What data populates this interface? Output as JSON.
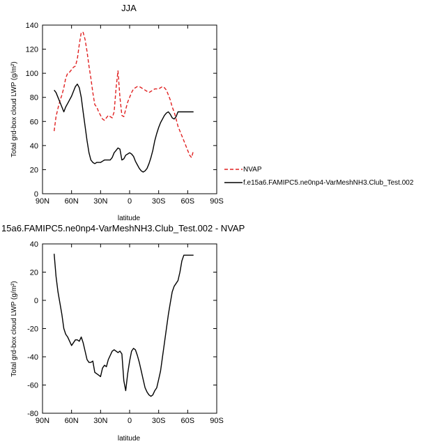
{
  "chart_data": [
    {
      "type": "line",
      "title": "JJA",
      "xlabel": "latitude",
      "ylabel": "Total grd-box cloud LWP (g/m²)",
      "xlim": [
        90,
        -90
      ],
      "ylim": [
        0,
        140
      ],
      "x_ticks": [
        90,
        60,
        30,
        0,
        -30,
        -60,
        -90
      ],
      "x_tick_labels": [
        "90N",
        "60N",
        "30N",
        "0",
        "30S",
        "60S",
        "90S"
      ],
      "y_ticks": [
        0,
        20,
        40,
        60,
        80,
        100,
        120,
        140
      ],
      "y_tick_labels": [
        "0",
        "20",
        "40",
        "60",
        "80",
        "100",
        "120",
        "140"
      ],
      "legend_position": "right",
      "series": [
        {
          "name": "NVAP",
          "color": "#e02020",
          "style": "dashed",
          "x": [
            78,
            76,
            74,
            72,
            70,
            68,
            66,
            64,
            62,
            60,
            58,
            56,
            54,
            52,
            50,
            48,
            46,
            44,
            42,
            40,
            38,
            36,
            34,
            32,
            30,
            28,
            26,
            24,
            22,
            20,
            18,
            16,
            14,
            12,
            10,
            8,
            6,
            4,
            2,
            0,
            -2,
            -4,
            -6,
            -8,
            -10,
            -12,
            -14,
            -16,
            -18,
            -20,
            -22,
            -24,
            -26,
            -28,
            -30,
            -32,
            -34,
            -36,
            -38,
            -40,
            -42,
            -44,
            -46,
            -48,
            -50,
            -52,
            -54,
            -56,
            -58,
            -60,
            -62,
            -64,
            -66
          ],
          "y": [
            52,
            64,
            71,
            77,
            82,
            88,
            96,
            100,
            101,
            103,
            105,
            106,
            112,
            124,
            134,
            134,
            128,
            118,
            106,
            96,
            84,
            74,
            72,
            68,
            65,
            62,
            61,
            63,
            65,
            64,
            63,
            68,
            88,
            102,
            80,
            65,
            64,
            70,
            76,
            80,
            84,
            87,
            88,
            89,
            89,
            88,
            87,
            86,
            85,
            84,
            85,
            86,
            87,
            87,
            87,
            88,
            89,
            88,
            86,
            82,
            78,
            72,
            68,
            62,
            56,
            52,
            48,
            44,
            40,
            36,
            32,
            30,
            36
          ]
        },
        {
          "name": "f.e15a6.FAMIPC5.ne0np4-VarMeshNH3.Club_Test.002",
          "color": "#000000",
          "style": "solid",
          "x": [
            78,
            76,
            74,
            72,
            70,
            68,
            66,
            64,
            62,
            60,
            58,
            56,
            54,
            52,
            50,
            48,
            46,
            44,
            42,
            40,
            38,
            36,
            34,
            32,
            30,
            28,
            26,
            24,
            22,
            20,
            18,
            16,
            14,
            12,
            10,
            8,
            6,
            4,
            2,
            0,
            -2,
            -4,
            -6,
            -8,
            -10,
            -12,
            -14,
            -16,
            -18,
            -20,
            -22,
            -24,
            -26,
            -28,
            -30,
            -32,
            -34,
            -36,
            -38,
            -40,
            -42,
            -44,
            -46,
            -48,
            -50,
            -52,
            -54,
            -56,
            -58,
            -60,
            -62,
            -64,
            -66
          ],
          "y": [
            86,
            84,
            80,
            76,
            72,
            68,
            72,
            75,
            78,
            81,
            85,
            89,
            91,
            88,
            80,
            68,
            56,
            44,
            34,
            28,
            26,
            25,
            26,
            26,
            26,
            27,
            28,
            28,
            28,
            28,
            30,
            34,
            36,
            38,
            37,
            28,
            29,
            32,
            33,
            34,
            33,
            31,
            27,
            24,
            21,
            19,
            18,
            19,
            21,
            25,
            30,
            36,
            44,
            50,
            55,
            59,
            62,
            65,
            67,
            68,
            66,
            63,
            62,
            64,
            68,
            68,
            68,
            68,
            68,
            68,
            68,
            68,
            68
          ]
        }
      ]
    },
    {
      "type": "line",
      "title": "15a6.FAMIPC5.ne0np4-VarMeshNH3.Club_Test.002 - NVAP",
      "xlabel": "latitude",
      "ylabel": "Total grd-box cloud LWP (g/m²)",
      "xlim": [
        90,
        -90
      ],
      "ylim": [
        -80,
        40
      ],
      "x_ticks": [
        90,
        60,
        30,
        0,
        -30,
        -60,
        -90
      ],
      "x_tick_labels": [
        "90N",
        "60N",
        "30N",
        "0",
        "30S",
        "60S",
        "90S"
      ],
      "y_ticks": [
        -80,
        -60,
        -40,
        -20,
        0,
        20,
        40
      ],
      "y_tick_labels": [
        "-80",
        "-60",
        "-40",
        "-20",
        "0",
        "20",
        "40"
      ],
      "series": [
        {
          "color": "#000000",
          "style": "solid",
          "x": [
            78,
            76,
            74,
            72,
            70,
            68,
            66,
            64,
            62,
            60,
            58,
            56,
            54,
            52,
            50,
            48,
            46,
            44,
            42,
            40,
            38,
            36,
            34,
            32,
            30,
            28,
            26,
            24,
            22,
            20,
            18,
            16,
            14,
            12,
            10,
            8,
            6,
            4,
            2,
            0,
            -2,
            -4,
            -6,
            -8,
            -10,
            -12,
            -14,
            -16,
            -18,
            -20,
            -22,
            -24,
            -26,
            -28,
            -30,
            -32,
            -34,
            -36,
            -38,
            -40,
            -42,
            -44,
            -46,
            -48,
            -50,
            -52,
            -54,
            -56,
            -58,
            -60,
            -62,
            -64,
            -66
          ],
          "y": [
            33,
            17,
            6,
            -2,
            -10,
            -20,
            -24,
            -26,
            -29,
            -32,
            -30,
            -28,
            -28,
            -29,
            -26,
            -30,
            -36,
            -42,
            -44,
            -44,
            -43,
            -51,
            -52,
            -53,
            -54,
            -48,
            -46,
            -47,
            -42,
            -39,
            -36,
            -35,
            -36,
            -37,
            -36,
            -38,
            -57,
            -64,
            -52,
            -43,
            -36,
            -34,
            -35,
            -39,
            -44,
            -50,
            -56,
            -62,
            -65,
            -67,
            -68,
            -67,
            -64,
            -62,
            -56,
            -50,
            -40,
            -30,
            -20,
            -10,
            -2,
            6,
            10,
            12,
            14,
            20,
            28,
            32,
            32,
            32,
            32,
            32,
            32
          ]
        }
      ]
    }
  ]
}
